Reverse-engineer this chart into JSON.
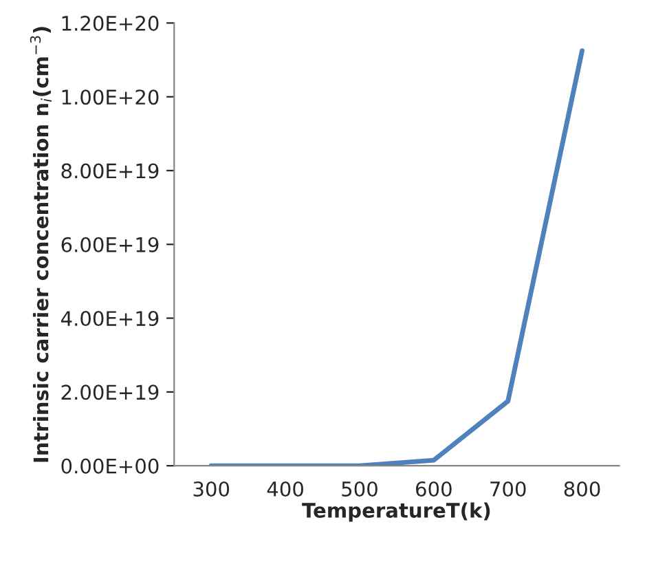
{
  "chart_data": {
    "type": "line",
    "xlabel": "TemperatureT(k)",
    "ylabel": "Intrinsic carrier concentration n$_{i}$(cm$^{−3}$)",
    "categories": [
      "300",
      "400",
      "500",
      "600",
      "700",
      "800"
    ],
    "series": [
      {
        "color": "#4f81bd",
        "values": [
          0,
          0,
          0,
          1.5e+18,
          1.75e+19,
          1.125e+20
        ]
      }
    ],
    "ylim": [
      0,
      1.2e+20
    ],
    "yticks": [
      {
        "value": 0,
        "label": "0.00E+00"
      },
      {
        "value": 2e+19,
        "label": "2.00E+19"
      },
      {
        "value": 4e+19,
        "label": "4.00E+19"
      },
      {
        "value": 6e+19,
        "label": "6.00E+19"
      },
      {
        "value": 8e+19,
        "label": "8.00E+19"
      },
      {
        "value": 1e+20,
        "label": "1.00E+20"
      },
      {
        "value": 1.2e+20,
        "label": "1.20E+20"
      }
    ],
    "grid": false,
    "legend": false,
    "marker": "none",
    "line_style": "solid"
  }
}
